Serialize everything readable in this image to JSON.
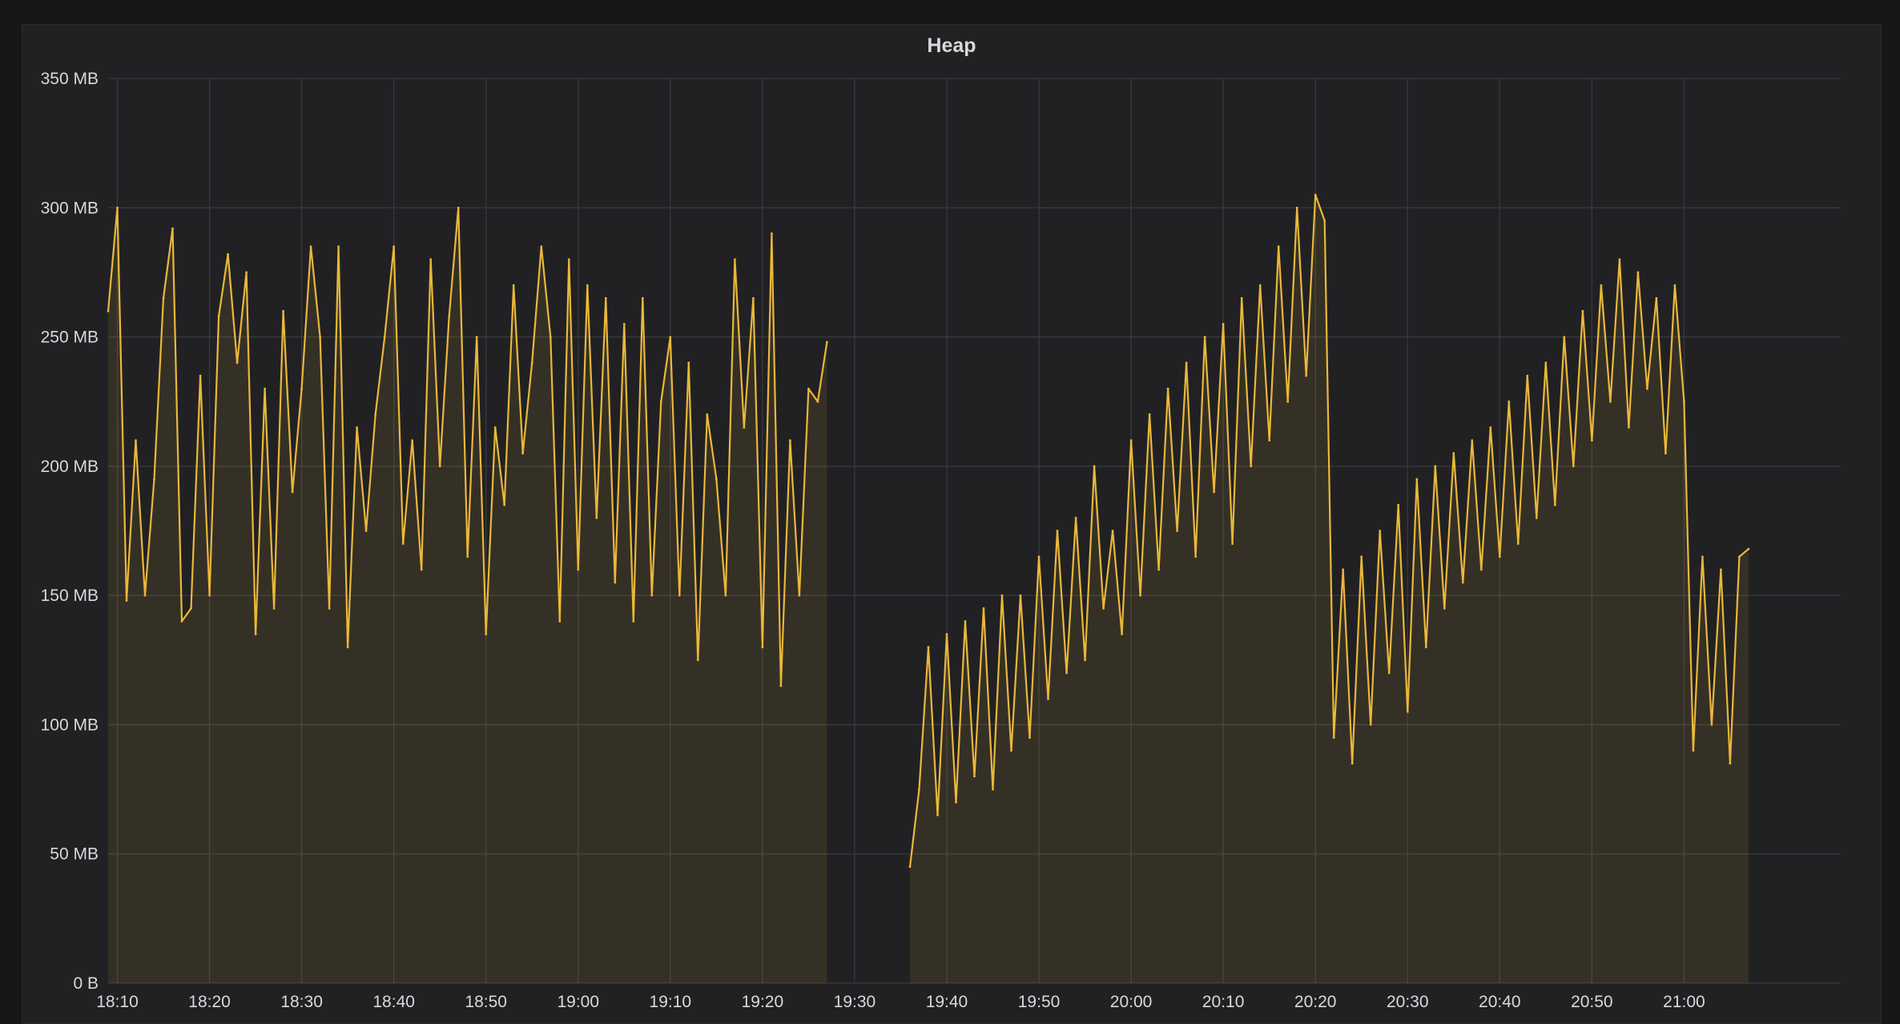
{
  "panel": {
    "title": "Heap"
  },
  "colors": {
    "series": "#eab839",
    "fill": "#eab839",
    "grid": "#3a3a3e",
    "background": "#212124",
    "text": "#d8d9da"
  },
  "chart_data": {
    "type": "area",
    "title": "Heap",
    "xlabel": "",
    "ylabel": "",
    "unit": "MB",
    "legend": "none",
    "grid": true,
    "ylim": [
      0,
      350
    ],
    "xlim": [
      "18:09",
      "21:17"
    ],
    "yticks": [
      {
        "value": 0,
        "label": "0 B"
      },
      {
        "value": 50,
        "label": "50 MB"
      },
      {
        "value": 100,
        "label": "100 MB"
      },
      {
        "value": 150,
        "label": "150 MB"
      },
      {
        "value": 200,
        "label": "200 MB"
      },
      {
        "value": 250,
        "label": "250 MB"
      },
      {
        "value": 300,
        "label": "300 MB"
      },
      {
        "value": 350,
        "label": "350 MB"
      }
    ],
    "xticks": [
      "18:10",
      "18:20",
      "18:30",
      "18:40",
      "18:50",
      "19:00",
      "19:10",
      "19:20",
      "19:30",
      "19:40",
      "19:50",
      "20:00",
      "20:10",
      "20:20",
      "20:30",
      "20:40",
      "20:50",
      "21:00"
    ],
    "series": [
      {
        "segments": [
          {
            "x": [
              "18:09",
              "18:10",
              "18:11",
              "18:12",
              "18:13",
              "18:14",
              "18:15",
              "18:16",
              "18:17",
              "18:18",
              "18:19",
              "18:20",
              "18:21",
              "18:22",
              "18:23",
              "18:24",
              "18:25",
              "18:26",
              "18:27",
              "18:28",
              "18:29",
              "18:30",
              "18:31",
              "18:32",
              "18:33",
              "18:34",
              "18:35",
              "18:36",
              "18:37",
              "18:38",
              "18:39",
              "18:40",
              "18:41",
              "18:42",
              "18:43",
              "18:44",
              "18:45",
              "18:46",
              "18:47",
              "18:48",
              "18:49",
              "18:50",
              "18:51",
              "18:52",
              "18:53",
              "18:54",
              "18:55",
              "18:56",
              "18:57",
              "18:58",
              "18:59",
              "19:00",
              "19:01",
              "19:02",
              "19:03",
              "19:04",
              "19:05",
              "19:06",
              "19:07",
              "19:08",
              "19:09",
              "19:10",
              "19:11",
              "19:12",
              "19:13",
              "19:14",
              "19:15",
              "19:16",
              "19:17",
              "19:18",
              "19:19",
              "19:20",
              "19:21",
              "19:22",
              "19:23",
              "19:24",
              "19:25",
              "19:26",
              "19:27"
            ],
            "y": [
              260,
              300,
              148,
              210,
              150,
              195,
              265,
              292,
              140,
              145,
              235,
              150,
              258,
              282,
              240,
              275,
              135,
              230,
              145,
              260,
              190,
              230,
              285,
              250,
              145,
              285,
              130,
              215,
              175,
              220,
              250,
              285,
              170,
              210,
              160,
              280,
              200,
              258,
              300,
              165,
              250,
              135,
              215,
              185,
              270,
              205,
              240,
              285,
              250,
              140,
              280,
              160,
              270,
              180,
              265,
              155,
              255,
              140,
              265,
              150,
              225,
              250,
              150,
              240,
              125,
              220,
              195,
              150,
              280,
              215,
              265,
              130,
              290,
              115,
              210,
              150,
              230,
              225,
              248
            ]
          },
          {
            "x": [
              "19:36",
              "19:37",
              "19:38",
              "19:39",
              "19:40",
              "19:41",
              "19:42",
              "19:43",
              "19:44",
              "19:45",
              "19:46",
              "19:47",
              "19:48",
              "19:49",
              "19:50",
              "19:51",
              "19:52",
              "19:53",
              "19:54",
              "19:55",
              "19:56",
              "19:57",
              "19:58",
              "19:59",
              "20:00",
              "20:01",
              "20:02",
              "20:03",
              "20:04",
              "20:05",
              "20:06",
              "20:07",
              "20:08",
              "20:09",
              "20:10",
              "20:11",
              "20:12",
              "20:13",
              "20:14",
              "20:15",
              "20:16",
              "20:17",
              "20:18",
              "20:19",
              "20:20",
              "20:21",
              "20:22",
              "20:23",
              "20:24",
              "20:25",
              "20:26",
              "20:27",
              "20:28",
              "20:29",
              "20:30",
              "20:31",
              "20:32",
              "20:33",
              "20:34",
              "20:35",
              "20:36",
              "20:37",
              "20:38",
              "20:39",
              "20:40",
              "20:41",
              "20:42",
              "20:43",
              "20:44",
              "20:45",
              "20:46",
              "20:47",
              "20:48",
              "20:49",
              "20:50",
              "20:51",
              "20:52",
              "20:53",
              "20:54",
              "20:55",
              "20:56",
              "20:57",
              "20:58",
              "20:59",
              "21:00",
              "21:01",
              "21:02",
              "21:03",
              "21:04",
              "21:05",
              "21:06",
              "21:07"
            ],
            "y": [
              45,
              75,
              130,
              65,
              135,
              70,
              140,
              80,
              145,
              75,
              150,
              90,
              150,
              95,
              165,
              110,
              175,
              120,
              180,
              125,
              200,
              145,
              175,
              135,
              210,
              150,
              220,
              160,
              230,
              175,
              240,
              165,
              250,
              190,
              255,
              170,
              265,
              200,
              270,
              210,
              285,
              225,
              300,
              235,
              305,
              295,
              95,
              160,
              85,
              165,
              100,
              175,
              120,
              185,
              105,
              195,
              130,
              200,
              145,
              205,
              155,
              210,
              160,
              215,
              165,
              225,
              170,
              235,
              180,
              240,
              185,
              250,
              200,
              260,
              210,
              270,
              225,
              280,
              215,
              275,
              230,
              265,
              205,
              270,
              225,
              90,
              165,
              100,
              160,
              85,
              165,
              168
            ]
          }
        ]
      }
    ]
  }
}
